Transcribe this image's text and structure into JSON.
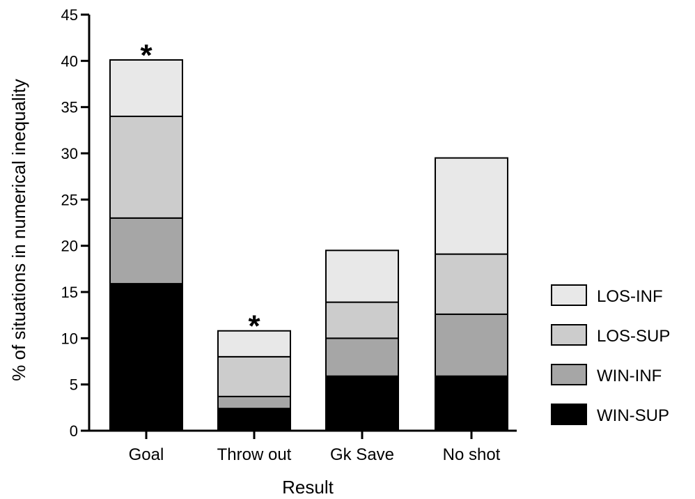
{
  "chart_data": {
    "type": "bar",
    "stacked": true,
    "title": "",
    "xlabel": "Result",
    "ylabel": "% of situations in numerical inequality",
    "ylim": [
      0,
      45
    ],
    "yticks": [
      0,
      5,
      10,
      15,
      20,
      25,
      30,
      35,
      40,
      45
    ],
    "categories": [
      "Goal",
      "Throw out",
      "Gk Save",
      "No shot"
    ],
    "series": [
      {
        "name": "WIN-SUP",
        "color": "#000000",
        "values": [
          15.9,
          2.4,
          5.9,
          5.9
        ]
      },
      {
        "name": "WIN-INF",
        "color": "#a6a6a6",
        "values": [
          7.1,
          1.3,
          4.1,
          6.7
        ]
      },
      {
        "name": "LOS-SUP",
        "color": "#cccccc",
        "values": [
          11.0,
          4.3,
          3.9,
          6.5
        ]
      },
      {
        "name": "LOS-INF",
        "color": "#e8e8e8",
        "values": [
          6.1,
          2.8,
          5.6,
          10.4
        ]
      }
    ],
    "legend_position": "right",
    "legend_order": [
      "LOS-INF",
      "LOS-SUP",
      "WIN-INF",
      "WIN-SUP"
    ],
    "annotations": [
      {
        "category": "Goal",
        "text": "*"
      },
      {
        "category": "Throw out",
        "text": "*"
      }
    ],
    "grid": false
  }
}
